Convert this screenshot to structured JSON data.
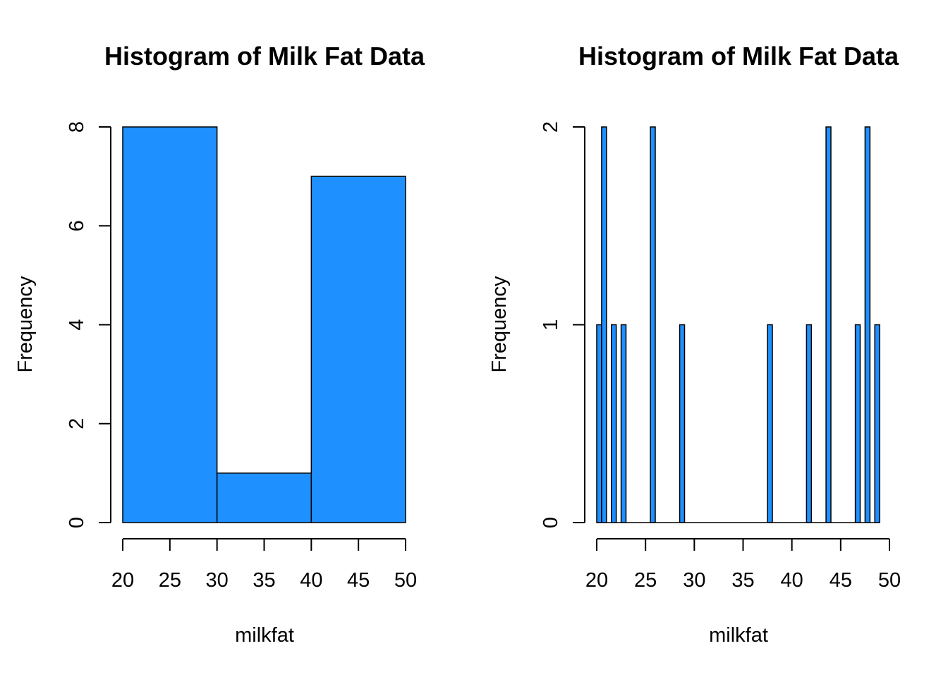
{
  "colors": {
    "bar_fill": "#1E90FF",
    "bar_stroke": "#000000"
  },
  "chart_data": [
    {
      "type": "bar",
      "title": "Histogram of Milk Fat Data",
      "xlabel": "milkfat",
      "ylabel": "Frequency",
      "xlim": [
        20,
        50
      ],
      "ylim": [
        0,
        8
      ],
      "x_ticks": [
        20,
        25,
        30,
        35,
        40,
        45,
        50
      ],
      "y_ticks": [
        0,
        2,
        4,
        6,
        8
      ],
      "bins": [
        {
          "from": 20,
          "to": 30,
          "count": 8
        },
        {
          "from": 30,
          "to": 40,
          "count": 1
        },
        {
          "from": 40,
          "to": 50,
          "count": 7
        }
      ]
    },
    {
      "type": "bar",
      "title": "Histogram of Milk Fat Data",
      "xlabel": "milkfat",
      "ylabel": "Frequency",
      "xlim": [
        20,
        50
      ],
      "ylim": [
        0,
        2
      ],
      "x_ticks": [
        20,
        25,
        30,
        35,
        40,
        45,
        50
      ],
      "y_ticks": [
        0,
        1,
        2
      ],
      "bin_width": 0.5,
      "bins": [
        {
          "from": 20,
          "to": 20.5,
          "count": 1
        },
        {
          "from": 20.5,
          "to": 21,
          "count": 2
        },
        {
          "from": 21.5,
          "to": 22,
          "count": 1
        },
        {
          "from": 22.5,
          "to": 23,
          "count": 1
        },
        {
          "from": 25.5,
          "to": 26,
          "count": 2
        },
        {
          "from": 28.5,
          "to": 29,
          "count": 1
        },
        {
          "from": 37.5,
          "to": 38,
          "count": 1
        },
        {
          "from": 41.5,
          "to": 42,
          "count": 1
        },
        {
          "from": 43.5,
          "to": 44,
          "count": 2
        },
        {
          "from": 46.5,
          "to": 47,
          "count": 1
        },
        {
          "from": 47.5,
          "to": 48,
          "count": 2
        },
        {
          "from": 48.5,
          "to": 49,
          "count": 1
        }
      ]
    }
  ]
}
